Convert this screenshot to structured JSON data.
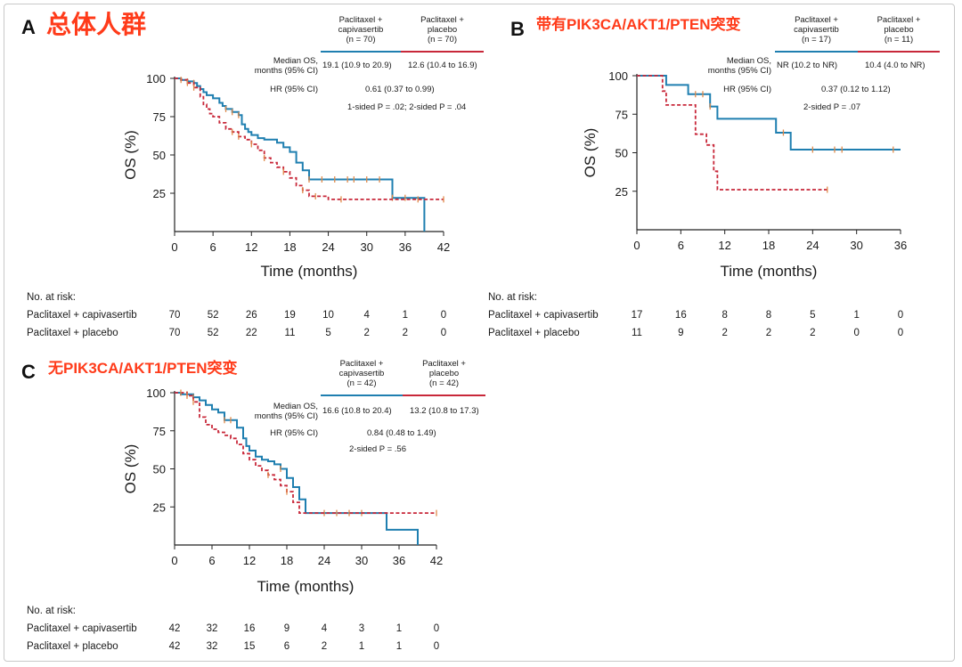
{
  "colors": {
    "capivasertib": "#1f7fb0",
    "placebo": "#c8283a",
    "censor": "#e08a4a",
    "title": "#ff3b1a"
  },
  "risk_label": "No. at risk:",
  "arm_names": {
    "capivasertib": "Paclitaxel + capivasertib",
    "placebo": "Paclitaxel + placebo"
  },
  "chart_data": [
    {
      "panel": "A",
      "type": "line",
      "title": "总体人群",
      "xlabel": "Time (months)",
      "ylabel": "OS (%)",
      "xticks": [
        0,
        6,
        12,
        18,
        24,
        30,
        36,
        42
      ],
      "yticks": [
        25,
        50,
        75,
        100
      ],
      "xlim": [
        0,
        42
      ],
      "ylim": [
        0,
        100
      ],
      "header": {
        "arm1": [
          "Paclitaxel +",
          "capivasertib",
          "(n = 70)"
        ],
        "arm2": [
          "Paclitaxel +",
          "placebo",
          "(n = 70)"
        ],
        "median_label": [
          "Median OS,",
          "months (95% CI)"
        ],
        "median_arm1": "19.1 (10.9 to 20.9)",
        "median_arm2": "12.6 (10.4 to 16.9)",
        "hr_label": "HR (95% CI)",
        "hr_value": "0.61 (0.37 to 0.99)",
        "p_text": "1-sided P = .02; 2-sided P = .04"
      },
      "series": [
        {
          "name": "Paclitaxel + capivasertib",
          "x": [
            0,
            1,
            2,
            3,
            3.5,
            4,
            4.5,
            5,
            6,
            7,
            7.5,
            8,
            9,
            10,
            10.5,
            11,
            11.5,
            12,
            13,
            14,
            16,
            17,
            18,
            19,
            20,
            21,
            24,
            30,
            34,
            36,
            39
          ],
          "y": [
            100,
            99,
            98,
            97,
            95,
            93,
            91,
            89,
            87,
            84,
            82,
            80,
            78,
            76,
            70,
            67,
            65,
            63,
            61,
            60,
            58,
            55,
            52,
            45,
            40,
            34,
            34,
            34,
            22,
            22,
            0
          ],
          "censor_x": [
            2,
            3,
            8,
            9,
            10,
            21,
            23,
            25,
            27,
            28,
            30,
            32,
            34,
            36
          ]
        },
        {
          "name": "Paclitaxel + placebo",
          "x": [
            0,
            1,
            2,
            3,
            4,
            4.5,
            5,
            5.5,
            6,
            7,
            8,
            9,
            10,
            11,
            12,
            13,
            14,
            15,
            16,
            17,
            18,
            19,
            20,
            21,
            24,
            30,
            36,
            42
          ],
          "y": [
            100,
            99,
            97,
            94,
            88,
            83,
            80,
            77,
            75,
            71,
            67,
            65,
            62,
            60,
            57,
            53,
            48,
            45,
            42,
            39,
            35,
            30,
            27,
            23,
            21,
            21,
            21,
            21
          ],
          "censor_x": [
            1,
            2,
            3,
            9,
            10,
            12,
            14,
            17,
            20,
            22,
            26,
            38,
            42
          ]
        }
      ],
      "risk_x": [
        0,
        6,
        12,
        18,
        24,
        30,
        36,
        42
      ],
      "risk": [
        {
          "arm": "Paclitaxel + capivasertib",
          "values": [
            70,
            52,
            26,
            19,
            10,
            4,
            1,
            0
          ]
        },
        {
          "arm": "Paclitaxel + placebo",
          "values": [
            70,
            52,
            22,
            11,
            5,
            2,
            2,
            0
          ]
        }
      ]
    },
    {
      "panel": "B",
      "type": "line",
      "title": "带有PIK3CA/AKT1/PTEN突变",
      "xlabel": "Time (months)",
      "ylabel": "OS (%)",
      "xticks": [
        0,
        6,
        12,
        18,
        24,
        30,
        36
      ],
      "yticks": [
        25,
        50,
        75,
        100
      ],
      "xlim": [
        0,
        36
      ],
      "ylim": [
        0,
        100
      ],
      "header": {
        "arm1": [
          "Paclitaxel +",
          "capivasertib",
          "(n = 17)"
        ],
        "arm2": [
          "Paclitaxel +",
          "placebo",
          "(n = 11)"
        ],
        "median_label": [
          "Median OS,",
          "months (95% CI)"
        ],
        "median_arm1": "NR (10.2 to NR)",
        "median_arm2": "10.4 (4.0 to NR)",
        "hr_label": "HR (95% CI)",
        "hr_value": "0.37 (0.12 to 1.12)",
        "p_text": "2-sided P = .07"
      },
      "series": [
        {
          "name": "Paclitaxel + capivasertib",
          "x": [
            0,
            4,
            7,
            10,
            11,
            19,
            21,
            36
          ],
          "y": [
            100,
            94,
            88,
            80,
            72,
            63,
            52,
            52
          ],
          "censor_x": [
            8,
            9,
            10,
            20,
            24,
            27,
            28,
            35
          ]
        },
        {
          "name": "Paclitaxel + placebo",
          "x": [
            0,
            3.5,
            4,
            8,
            9.5,
            10.5,
            11,
            26
          ],
          "y": [
            100,
            90,
            81,
            62,
            55,
            38,
            26,
            26
          ],
          "censor_x": [
            26
          ]
        }
      ],
      "risk_x": [
        0,
        6,
        12,
        18,
        24,
        30,
        36
      ],
      "risk": [
        {
          "arm": "Paclitaxel + capivasertib",
          "values": [
            17,
            16,
            8,
            8,
            5,
            1,
            0
          ]
        },
        {
          "arm": "Paclitaxel + placebo",
          "values": [
            11,
            9,
            2,
            2,
            2,
            0,
            0
          ]
        }
      ]
    },
    {
      "panel": "C",
      "type": "line",
      "title": "无PIK3CA/AKT1/PTEN突变",
      "xlabel": "Time (months)",
      "ylabel": "OS (%)",
      "xticks": [
        0,
        6,
        12,
        18,
        24,
        30,
        36,
        42
      ],
      "yticks": [
        25,
        50,
        75,
        100
      ],
      "xlim": [
        0,
        42
      ],
      "ylim": [
        0,
        100
      ],
      "header": {
        "arm1": [
          "Paclitaxel +",
          "capivasertib",
          "(n = 42)"
        ],
        "arm2": [
          "Paclitaxel +",
          "placebo",
          "(n = 42)"
        ],
        "median_label": [
          "Median OS,",
          "months (95% CI)"
        ],
        "median_arm1": "16.6 (10.8 to 20.4)",
        "median_arm2": "13.2 (10.8 to 17.3)",
        "hr_label": "HR (95% CI)",
        "hr_value": "0.84 (0.48 to 1.49)",
        "p_text": "2-sided P = .56"
      },
      "series": [
        {
          "name": "Paclitaxel + capivasertib",
          "x": [
            0,
            1,
            3,
            4,
            5,
            6,
            7,
            8,
            10,
            11,
            11.5,
            12,
            13,
            14,
            15,
            16,
            17,
            18,
            19,
            20,
            21,
            24,
            30,
            34,
            36,
            39
          ],
          "y": [
            100,
            99,
            97,
            95,
            92,
            89,
            87,
            82,
            77,
            70,
            65,
            62,
            58,
            56,
            55,
            53,
            50,
            44,
            38,
            30,
            21,
            21,
            21,
            10,
            10,
            0
          ],
          "censor_x": [
            2,
            3,
            8,
            9,
            17,
            24,
            26,
            28,
            30
          ]
        },
        {
          "name": "Paclitaxel + placebo",
          "x": [
            0,
            2,
            3,
            4,
            5,
            6,
            7,
            8,
            9,
            10,
            11,
            12,
            13,
            14,
            15,
            16,
            17,
            18,
            19,
            20,
            42
          ],
          "y": [
            100,
            98,
            94,
            84,
            79,
            76,
            74,
            72,
            70,
            66,
            60,
            56,
            52,
            49,
            46,
            43,
            39,
            35,
            28,
            21,
            21
          ],
          "censor_x": [
            1,
            2,
            3,
            15,
            18,
            42
          ]
        }
      ],
      "risk_x": [
        0,
        6,
        12,
        18,
        24,
        30,
        36,
        42
      ],
      "risk": [
        {
          "arm": "Paclitaxel + capivasertib",
          "values": [
            42,
            32,
            16,
            9,
            4,
            3,
            1,
            0
          ]
        },
        {
          "arm": "Paclitaxel + placebo",
          "values": [
            42,
            32,
            15,
            6,
            2,
            1,
            1,
            0
          ]
        }
      ]
    }
  ]
}
